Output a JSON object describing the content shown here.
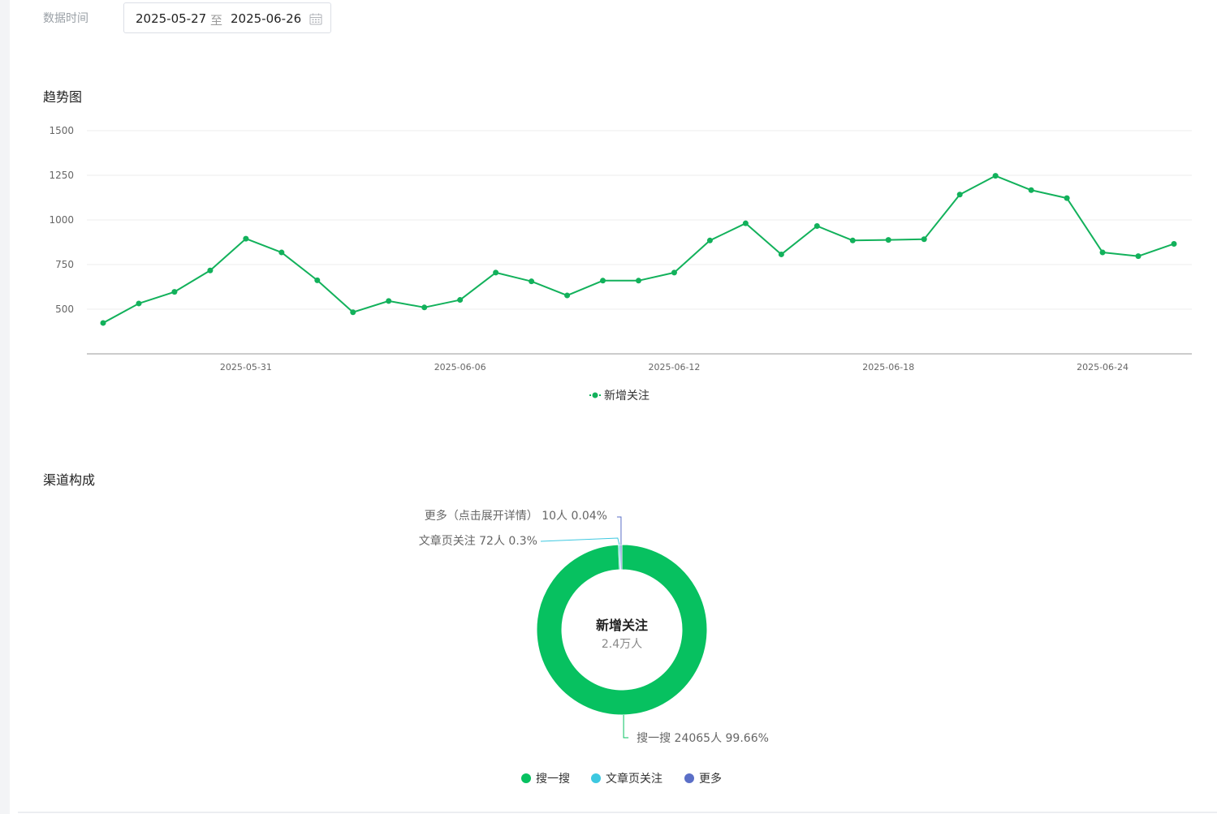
{
  "filter": {
    "label": "数据时间",
    "start": "2025-05-27",
    "separator": "至",
    "end": "2025-06-26"
  },
  "trend": {
    "title": "趋势图"
  },
  "channel": {
    "title": "渠道构成"
  },
  "colors": {
    "line": "#12b15b",
    "grid": "#eeeeee",
    "axis": "#cccccc",
    "pie_main": "#07c160",
    "pie_article": "#3dc8e0",
    "pie_more": "#5b6fc7"
  },
  "chart_data": [
    {
      "type": "line",
      "title": "趋势图",
      "x": [
        "2025-05-27",
        "2025-05-28",
        "2025-05-29",
        "2025-05-30",
        "2025-05-31",
        "2025-06-01",
        "2025-06-02",
        "2025-06-03",
        "2025-06-04",
        "2025-06-05",
        "2025-06-06",
        "2025-06-07",
        "2025-06-08",
        "2025-06-09",
        "2025-06-10",
        "2025-06-11",
        "2025-06-12",
        "2025-06-13",
        "2025-06-14",
        "2025-06-15",
        "2025-06-16",
        "2025-06-17",
        "2025-06-18",
        "2025-06-19",
        "2025-06-20",
        "2025-06-21",
        "2025-06-22",
        "2025-06-23",
        "2025-06-24",
        "2025-06-25",
        "2025-06-26"
      ],
      "x_tick_labels": [
        "2025-05-31",
        "2025-06-06",
        "2025-06-12",
        "2025-06-18",
        "2025-06-24"
      ],
      "y_ticks": [
        500,
        750,
        1000,
        1250,
        1500
      ],
      "ylim": [
        250,
        1500
      ],
      "grid": true,
      "legend": "bottom-center",
      "series": [
        {
          "name": "新增关注",
          "values": [
            423,
            532,
            597,
            717,
            895,
            818,
            662,
            483,
            546,
            510,
            552,
            705,
            656,
            577,
            660,
            660,
            705,
            885,
            981,
            807,
            966,
            885,
            888,
            892,
            1142,
            1247,
            1167,
            1122,
            818,
            797,
            866
          ]
        }
      ]
    },
    {
      "type": "pie",
      "title": "渠道构成",
      "center_title": "新增关注",
      "center_value": "2.4万人",
      "legend": "bottom-center",
      "slices": [
        {
          "name": "搜一搜",
          "count": 24065,
          "percent": 99.66,
          "label": "搜一搜 24065人 99.66%"
        },
        {
          "name": "文章页关注",
          "count": 72,
          "percent": 0.3,
          "label": "文章页关注 72人 0.3%"
        },
        {
          "name": "更多",
          "count": 10,
          "percent": 0.04,
          "label": "更多（点击展开详情） 10人 0.04%"
        }
      ]
    }
  ]
}
